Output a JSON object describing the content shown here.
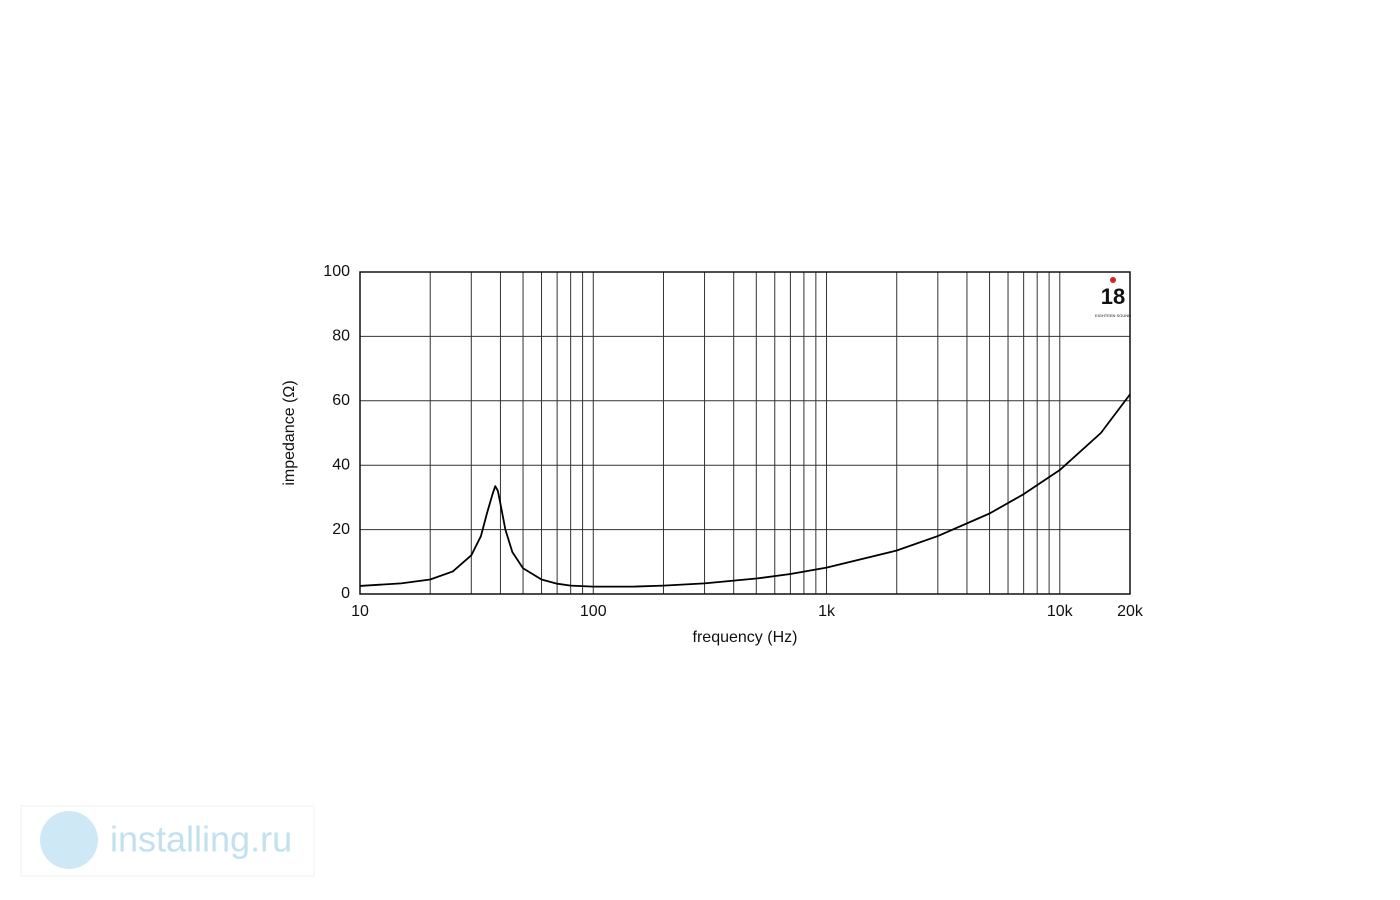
{
  "chart_data": {
    "type": "line",
    "xlabel": "frequency (Hz)",
    "ylabel": "impedance (Ω)",
    "x": [
      10,
      15,
      20,
      25,
      30,
      33,
      35,
      37,
      38,
      39,
      40,
      42,
      45,
      50,
      60,
      70,
      80,
      100,
      150,
      200,
      300,
      500,
      700,
      1000,
      2000,
      3000,
      5000,
      7000,
      10000,
      15000,
      20000
    ],
    "series": [
      {
        "color": "#000000",
        "values": [
          2.5,
          3.3,
          4.5,
          7,
          12,
          18,
          25,
          31,
          33.5,
          32,
          28,
          20,
          13,
          8,
          4.5,
          3.2,
          2.6,
          2.3,
          2.3,
          2.6,
          3.3,
          4.8,
          6.2,
          8.2,
          13.5,
          18,
          25,
          31,
          38.5,
          50,
          62
        ]
      }
    ],
    "xscale": "log",
    "xlim": [
      10,
      20000
    ],
    "xticks": [
      10,
      100,
      {
        "value": 1000,
        "label": "1k"
      },
      {
        "value": 10000,
        "label": "10k"
      },
      {
        "value": 20000,
        "label": "20k"
      }
    ],
    "ylim": [
      0,
      100
    ],
    "yticks": [
      0,
      20,
      40,
      60,
      80,
      100
    ],
    "grid": true,
    "logo": {
      "number": "18",
      "name": "EIGHTEEN SOUND"
    }
  },
  "watermark": "installing.ru"
}
